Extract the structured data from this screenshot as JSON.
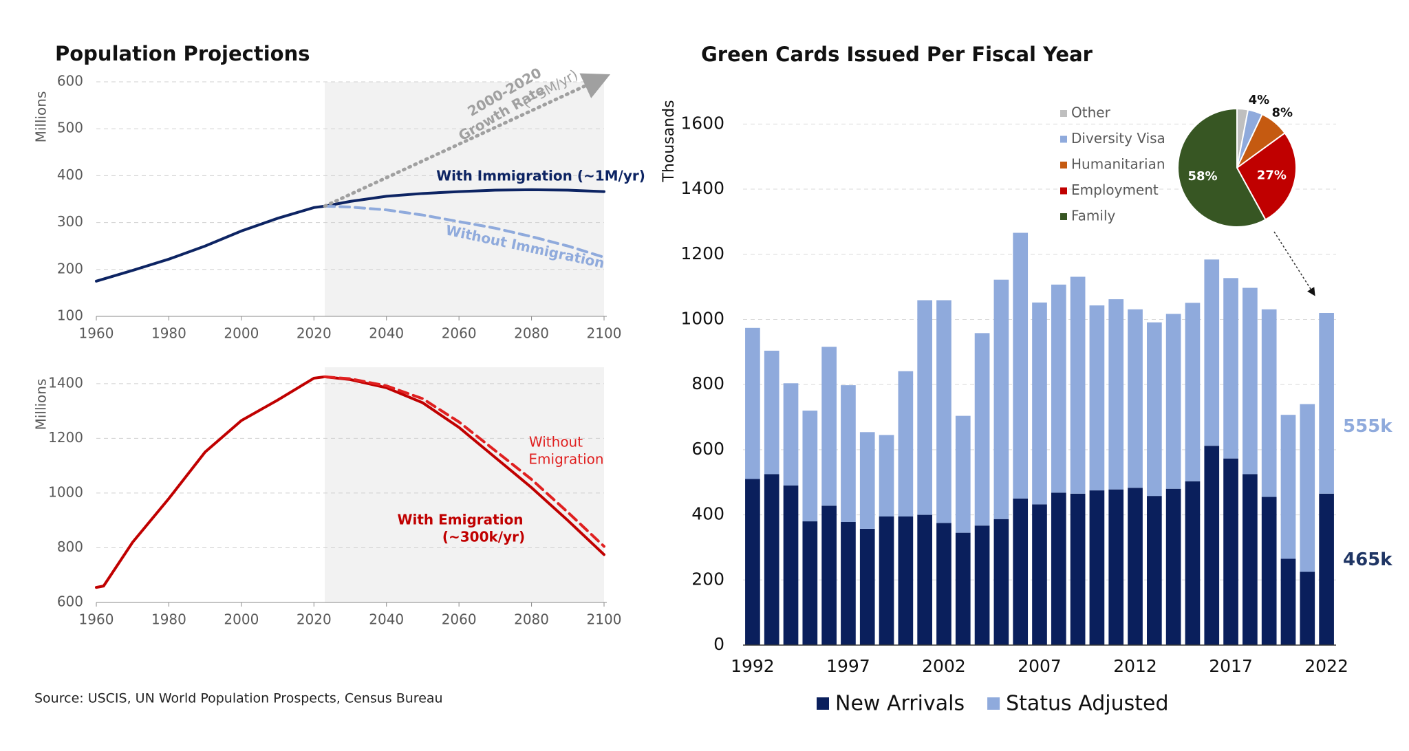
{
  "chart_data": [
    {
      "type": "line",
      "title": "Population Projections",
      "ylabel": "Millions",
      "xlim": [
        1960,
        2100
      ],
      "xticks": [
        1960,
        1980,
        2000,
        2020,
        2040,
        2060,
        2080,
        2100
      ],
      "ylim": [
        100,
        600
      ],
      "yticks": [
        100,
        200,
        300,
        400,
        500,
        600
      ],
      "grid": true,
      "projection_start": 2023,
      "series": [
        {
          "color": "#0d2463",
          "dash": "solid",
          "x": [
            1960,
            1970,
            1980,
            1990,
            2000,
            2010,
            2020,
            2023,
            2030,
            2040,
            2050,
            2060,
            2070,
            2080,
            2090,
            2100
          ],
          "values": [
            175,
            198,
            222,
            250,
            282,
            309,
            332,
            335,
            345,
            356,
            362,
            366,
            369,
            370,
            369,
            366
          ]
        },
        {
          "color": "#8faadc",
          "dash": "dashed",
          "x": [
            2023,
            2030,
            2040,
            2050,
            2060,
            2070,
            2080,
            2090,
            2100
          ],
          "values": [
            335,
            333,
            327,
            316,
            302,
            288,
            270,
            250,
            226
          ]
        },
        {
          "color": "#a0a0a0",
          "dash": "dotted",
          "arrow": true,
          "x": [
            2023,
            2100
          ],
          "values": [
            335,
            610
          ]
        }
      ],
      "annotations": [
        "2000-2020",
        "Growth Rate",
        "(~3M/yr)",
        "With Immigration (~1M/yr)",
        "Without Immigration"
      ]
    },
    {
      "type": "line",
      "ylabel": "Millions",
      "xlim": [
        1960,
        2100
      ],
      "xticks": [
        1960,
        1980,
        2000,
        2020,
        2040,
        2060,
        2080,
        2100
      ],
      "ylim": [
        600,
        1460
      ],
      "yticks": [
        600,
        800,
        1000,
        1200,
        1400
      ],
      "grid": true,
      "projection_start": 2023,
      "series": [
        {
          "color": "#c00000",
          "dash": "solid",
          "x": [
            1960,
            1962,
            1970,
            1980,
            1990,
            2000,
            2010,
            2020,
            2023,
            2030,
            2040,
            2050,
            2060,
            2070,
            2080,
            2090,
            2100
          ],
          "values": [
            655,
            660,
            820,
            980,
            1150,
            1265,
            1340,
            1420,
            1425,
            1415,
            1385,
            1330,
            1240,
            1130,
            1020,
            900,
            775
          ]
        },
        {
          "color": "#e02020",
          "dash": "dashed",
          "x": [
            2023,
            2030,
            2040,
            2050,
            2060,
            2070,
            2080,
            2090,
            2100
          ],
          "values": [
            1425,
            1418,
            1392,
            1345,
            1260,
            1155,
            1050,
            930,
            805
          ]
        }
      ],
      "annotations": [
        "Without",
        "Emigration",
        "With Emigration",
        "(~300k/yr)"
      ]
    },
    {
      "type": "bar",
      "stacked": true,
      "title": "Green Cards Issued Per Fiscal Year",
      "ylabel": "Thousands",
      "xlim": [
        1991.5,
        2022.5
      ],
      "xticks": [
        1992,
        1997,
        2002,
        2007,
        2012,
        2017,
        2022
      ],
      "ylim": [
        0,
        1700
      ],
      "yticks": [
        0,
        200,
        400,
        600,
        800,
        1000,
        1200,
        1400,
        1600
      ],
      "grid": true,
      "x": [
        1992,
        1993,
        1994,
        1995,
        1996,
        1997,
        1998,
        1999,
        2000,
        2001,
        2002,
        2003,
        2004,
        2005,
        2006,
        2007,
        2008,
        2009,
        2010,
        2011,
        2012,
        2013,
        2014,
        2015,
        2016,
        2017,
        2018,
        2019,
        2020,
        2021,
        2022
      ],
      "series": [
        {
          "name": "New Arrivals",
          "color": "#0a1f5c",
          "values": [
            510,
            525,
            490,
            380,
            428,
            378,
            357,
            395,
            395,
            400,
            375,
            345,
            367,
            387,
            450,
            432,
            468,
            465,
            475,
            478,
            483,
            458,
            480,
            503,
            612,
            573,
            525,
            455,
            265,
            225,
            465
          ],
          "value_labels": [
            null,
            null,
            null,
            null,
            null,
            null,
            null,
            null,
            null,
            null,
            null,
            null,
            null,
            null,
            null,
            null,
            null,
            null,
            null,
            null,
            null,
            null,
            null,
            null,
            null,
            null,
            null,
            null,
            null,
            null,
            "465k"
          ]
        },
        {
          "name": "Status Adjusted",
          "color": "#8faadc",
          "values": [
            464,
            379,
            314,
            340,
            488,
            420,
            297,
            250,
            446,
            659,
            684,
            359,
            591,
            735,
            816,
            620,
            639,
            666,
            568,
            584,
            548,
            533,
            537,
            548,
            572,
            554,
            572,
            576,
            442,
            515,
            555
          ],
          "value_labels": [
            null,
            null,
            null,
            null,
            null,
            null,
            null,
            null,
            null,
            null,
            null,
            null,
            null,
            null,
            null,
            null,
            null,
            null,
            null,
            null,
            null,
            null,
            null,
            null,
            null,
            null,
            null,
            null,
            null,
            null,
            "555k"
          ]
        }
      ]
    },
    {
      "type": "pie",
      "categories": [
        "Other",
        "Diversity Visa",
        "Humanitarian",
        "Employment",
        "Family"
      ],
      "values": [
        3,
        4,
        8,
        27,
        58
      ],
      "value_labels": [
        null,
        "4%",
        "8%",
        "27%",
        "58%"
      ],
      "colors": [
        "#bfbfbf",
        "#8faadc",
        "#c55a11",
        "#c00000",
        "#375623"
      ]
    }
  ],
  "source": "Source: USCIS, UN World Population Prospects, Census Bureau"
}
